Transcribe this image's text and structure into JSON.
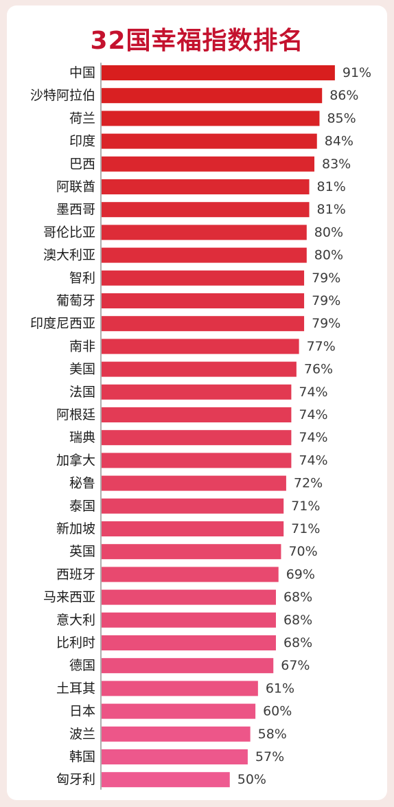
{
  "chart_data": {
    "type": "bar",
    "orientation": "horizontal",
    "title": "32国幸福指数排名",
    "xlabel": "",
    "ylabel": "",
    "xlim": [
      0,
      100
    ],
    "grid": false,
    "legend": "none",
    "value_suffix": "%",
    "categories": [
      "中国",
      "沙特阿拉伯",
      "荷兰",
      "印度",
      "巴西",
      "阿联酋",
      "墨西哥",
      "哥伦比亚",
      "澳大利亚",
      "智利",
      "葡萄牙",
      "印度尼西亚",
      "南非",
      "美国",
      "法国",
      "阿根廷",
      "瑞典",
      "加拿大",
      "秘鲁",
      "泰国",
      "新加坡",
      "英国",
      "西班牙",
      "马来西亚",
      "意大利",
      "比利时",
      "德国",
      "土耳其",
      "日本",
      "波兰",
      "韩国",
      "匈牙利"
    ],
    "values": [
      91,
      86,
      85,
      84,
      83,
      81,
      81,
      80,
      80,
      79,
      79,
      79,
      77,
      76,
      74,
      74,
      74,
      74,
      72,
      71,
      71,
      70,
      69,
      68,
      68,
      68,
      67,
      61,
      60,
      58,
      57,
      50
    ],
    "colors": {
      "top": "#d81e1e",
      "bottom": "#ee5a90",
      "title": "#c4122e",
      "background": "#f6e9e6",
      "card": "#ffffff"
    }
  }
}
